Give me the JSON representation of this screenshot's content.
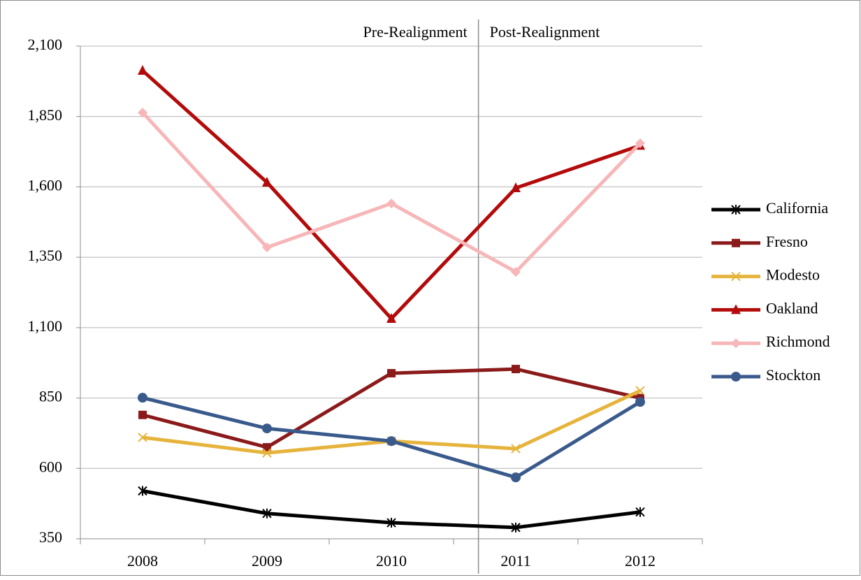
{
  "chart_data": {
    "type": "line",
    "annotations": [
      "Pre-Realignment",
      "Post-Realignment"
    ],
    "categories": [
      "2008",
      "2009",
      "2010",
      "2011",
      "2012"
    ],
    "series": [
      {
        "name": "California",
        "color": "#000000",
        "marker": "asterisk",
        "values": [
          520,
          440,
          407,
          390,
          445
        ]
      },
      {
        "name": "Fresno",
        "color": "#8b1a1a",
        "marker": "square",
        "values": [
          790,
          675,
          938,
          953,
          850
        ]
      },
      {
        "name": "Modesto",
        "color": "#e6b43c",
        "marker": "x",
        "values": [
          710,
          655,
          697,
          670,
          876
        ]
      },
      {
        "name": "Oakland",
        "color": "#b40a0a",
        "marker": "triangle",
        "values": [
          2013,
          1616,
          1132,
          1596,
          1747
        ]
      },
      {
        "name": "Richmond",
        "color": "#f7b6b8",
        "marker": "diamond",
        "values": [
          1864,
          1385,
          1541,
          1298,
          1755
        ]
      },
      {
        "name": "Stockton",
        "color": "#3a5a8c",
        "marker": "circle",
        "values": [
          851,
          742,
          697,
          568,
          836
        ]
      }
    ],
    "ylim": [
      350,
      2100
    ],
    "yticks": [
      350,
      600,
      850,
      {
        "value": 1100,
        "label": "1,100"
      },
      {
        "value": 1350,
        "label": "1,350"
      },
      {
        "value": 1600,
        "label": "1,600"
      },
      {
        "value": 1850,
        "label": "1,850"
      },
      {
        "value": 2100,
        "label": "2,100"
      }
    ],
    "grid": true,
    "legend": "right"
  }
}
